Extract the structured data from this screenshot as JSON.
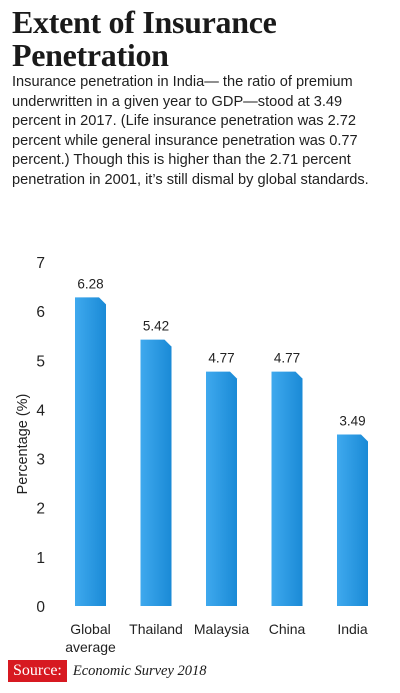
{
  "title": "Extent of Insurance Penetration",
  "subtitle": "Insurance penetration in India— the ratio of premium underwritten in a given year to GDP—stood at 3.49 percent in 2017. (Life insurance penetration was 2.72 percent while general insurance penetration was 0.77 percent.) Though this is higher than the 2.71 percent penetration in 2001, it’s still dismal by global standards.",
  "source": {
    "label": "Source:",
    "text": "Economic Survey 2018"
  },
  "colors": {
    "bar": "#1a8ad6",
    "bar_light": "#3fa9ee",
    "accent": "#d71921"
  },
  "chart_data": {
    "type": "bar",
    "categories": [
      [
        "Global",
        "average"
      ],
      [
        "Thailand"
      ],
      [
        "Malaysia"
      ],
      [
        "China"
      ],
      [
        "India"
      ]
    ],
    "values": [
      6.28,
      5.42,
      4.77,
      4.77,
      3.49
    ],
    "value_labels": [
      "6.28",
      "5.42",
      "4.77",
      "4.77",
      "3.49"
    ],
    "ylabel": "Percentage (%)",
    "xlabel": "",
    "ylim": [
      0,
      7
    ],
    "yticks": [
      0,
      1,
      2,
      3,
      4,
      5,
      6,
      7
    ],
    "grid": false,
    "legend": "none"
  }
}
